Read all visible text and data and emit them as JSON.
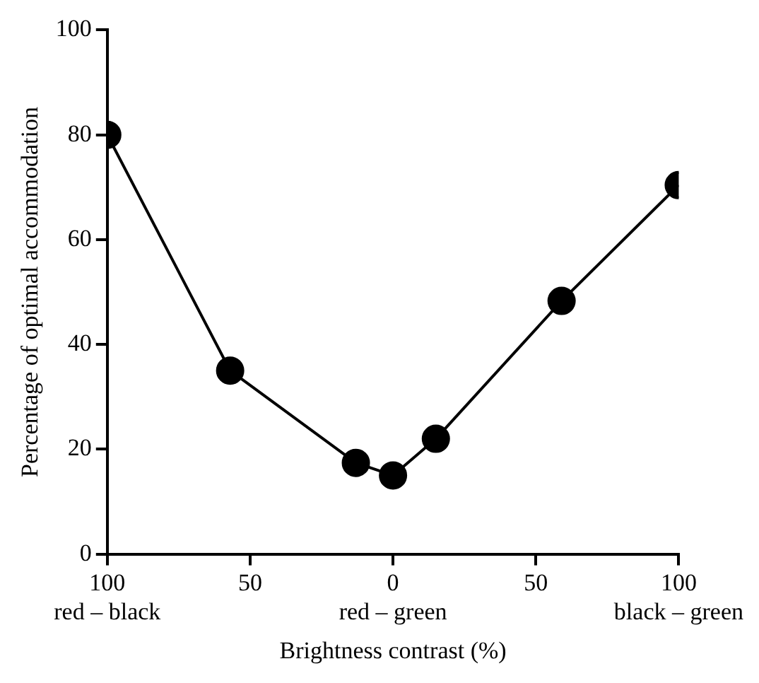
{
  "chart_data": {
    "type": "line",
    "xlabel": "Brightness contrast (%)",
    "ylabel": "Percentage of optimal accommodation",
    "x": [
      -100,
      -57,
      -13,
      0,
      15,
      59,
      100
    ],
    "series": [
      {
        "color": "#000000",
        "values": [
          80,
          35,
          17.4,
          15,
          22,
          48.3,
          70.4
        ]
      }
    ],
    "xlim": [
      -100,
      100
    ],
    "xticks": [
      {
        "value": -100,
        "label": "100\nred – black"
      },
      {
        "value": -50,
        "label": "50"
      },
      {
        "value": 0,
        "label": "0\nred – green"
      },
      {
        "value": 50,
        "label": "50"
      },
      {
        "value": 100,
        "label": "100\nblack – green"
      }
    ],
    "ylim": [
      0,
      100
    ],
    "yticks": [
      0,
      20,
      40,
      60,
      80,
      100
    ],
    "grid": false,
    "legend": false,
    "marker": "circle",
    "line_style": "solid"
  }
}
